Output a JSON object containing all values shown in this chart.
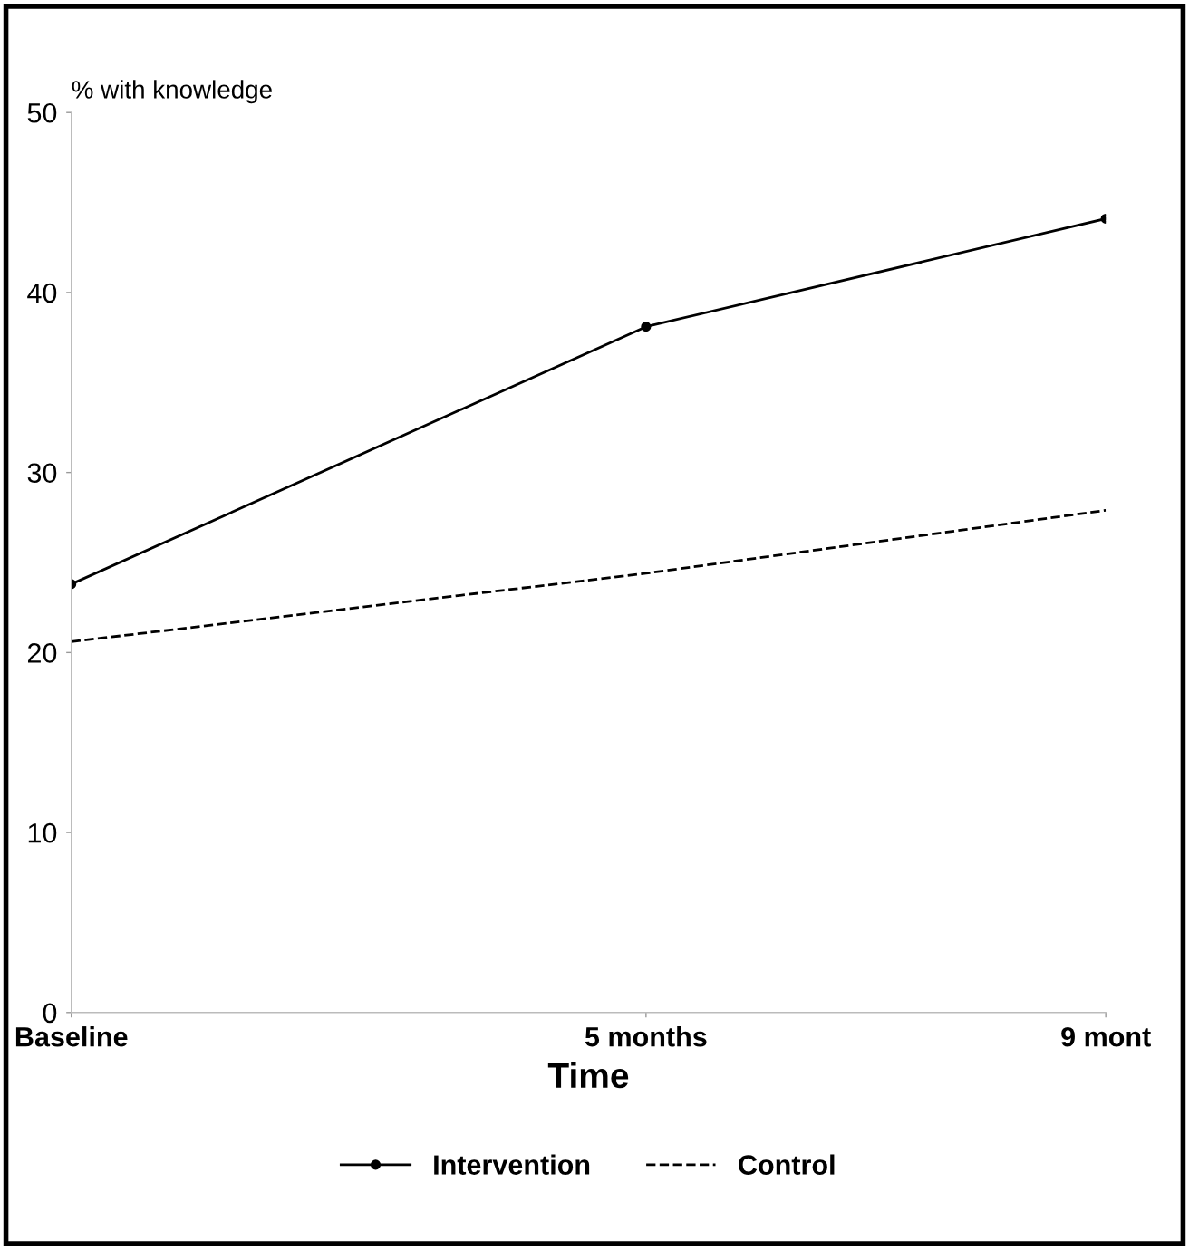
{
  "chart_data": {
    "type": "line",
    "xlabel": "Time",
    "ylabel": "% with knowledge",
    "x": [
      0,
      5,
      9
    ],
    "series": [
      {
        "name": "Intervention",
        "color": "#000000",
        "values": [
          23.8,
          38.1,
          44.1
        ],
        "marker": "circle",
        "line_style": "solid"
      },
      {
        "name": "Control",
        "color": "#000000",
        "values": [
          20.6,
          24.4,
          27.9
        ],
        "marker": "none",
        "line_style": "dashed"
      }
    ],
    "xlim": [
      0,
      9
    ],
    "xticks": [
      {
        "value": 0,
        "label": "Baseline"
      },
      {
        "value": 5,
        "label": "5 months"
      },
      {
        "value": 9,
        "label": "9 mont"
      }
    ],
    "ylim": [
      0,
      50
    ],
    "yticks": [
      0,
      10,
      20,
      30,
      40,
      50
    ],
    "legend": "bottom"
  }
}
